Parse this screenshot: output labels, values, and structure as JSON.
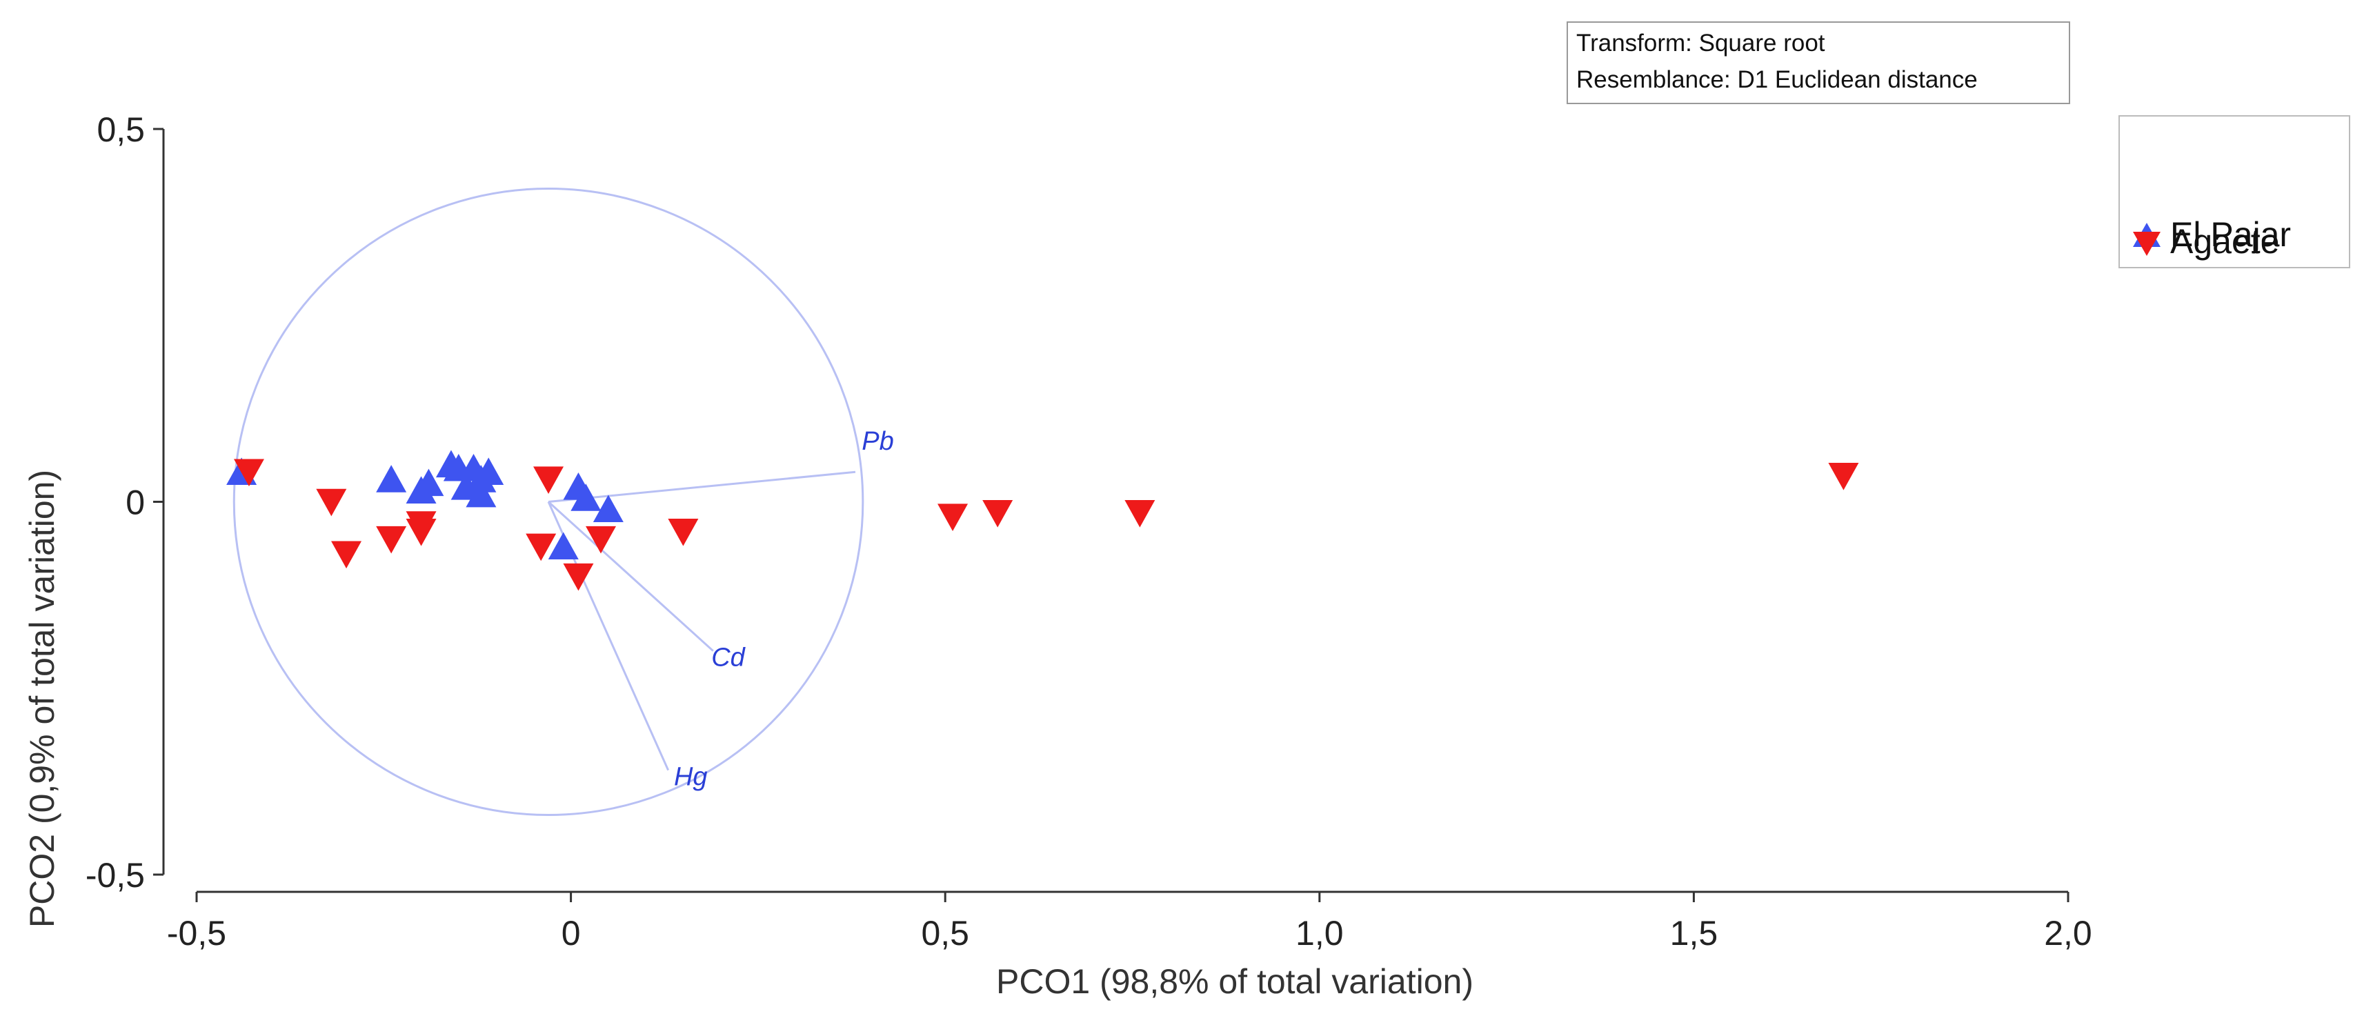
{
  "chart_data": {
    "type": "scatter",
    "title": "",
    "xlabel": "PCO1 (98,8% of total variation)",
    "ylabel": "PCO2 (0,9% of total variation)",
    "xlim": [
      -0.5,
      2.0
    ],
    "ylim": [
      -0.5,
      0.5
    ],
    "xticks": [
      -0.5,
      0,
      0.5,
      1.0,
      1.5,
      2.0
    ],
    "xtick_labels": [
      "-0,5",
      "0",
      "0,5",
      "1,0",
      "1,5",
      "2,0"
    ],
    "yticks": [
      0.5,
      0,
      -0.5
    ],
    "ytick_labels": [
      "0,5",
      "0",
      "-0,5"
    ],
    "grid": false,
    "info_box": [
      "Transform: Square root",
      "Resemblance: D1 Euclidean distance"
    ],
    "legend": {
      "position": "right",
      "entries": [
        {
          "name": "El Pajar",
          "marker": "triangle-up",
          "color": "#3e54f0"
        },
        {
          "name": "Agaete",
          "marker": "triangle-down",
          "color": "#ee1a1a"
        }
      ]
    },
    "correlation_circle": {
      "center": [
        -0.03,
        0.0
      ],
      "radius": 0.42,
      "color": "#b8c0f4"
    },
    "vectors": [
      {
        "name": "Pb",
        "end": [
          0.38,
          0.04
        ],
        "label_at": [
          0.41,
          0.07
        ]
      },
      {
        "name": "Cd",
        "end": [
          0.19,
          -0.2
        ],
        "label_at": [
          0.21,
          -0.22
        ]
      },
      {
        "name": "Hg",
        "end": [
          0.13,
          -0.36
        ],
        "label_at": [
          0.16,
          -0.38
        ]
      }
    ],
    "series": [
      {
        "name": "El Pajar",
        "marker": "triangle-up",
        "color": "#3e54f0",
        "points": [
          [
            -0.44,
            0.04
          ],
          [
            -0.24,
            0.03
          ],
          [
            -0.2,
            0.015
          ],
          [
            -0.19,
            0.025
          ],
          [
            -0.16,
            0.05
          ],
          [
            -0.15,
            0.045
          ],
          [
            -0.14,
            0.02
          ],
          [
            -0.13,
            0.045
          ],
          [
            -0.12,
            0.01
          ],
          [
            -0.12,
            0.03
          ],
          [
            -0.11,
            0.04
          ],
          [
            -0.01,
            -0.06
          ],
          [
            0.01,
            0.02
          ],
          [
            0.02,
            0.005
          ],
          [
            0.05,
            -0.01
          ]
        ]
      },
      {
        "name": "Agaete",
        "marker": "triangle-down",
        "color": "#ee1a1a",
        "points": [
          [
            -0.43,
            0.04
          ],
          [
            -0.32,
            0.0
          ],
          [
            -0.3,
            -0.07
          ],
          [
            -0.24,
            -0.05
          ],
          [
            -0.2,
            -0.03
          ],
          [
            -0.2,
            -0.04
          ],
          [
            -0.04,
            -0.06
          ],
          [
            -0.03,
            0.03
          ],
          [
            0.01,
            -0.1
          ],
          [
            0.04,
            -0.05
          ],
          [
            0.15,
            -0.04
          ],
          [
            0.51,
            -0.02
          ],
          [
            0.57,
            -0.015
          ],
          [
            0.76,
            -0.015
          ],
          [
            1.7,
            0.035
          ]
        ]
      }
    ]
  }
}
